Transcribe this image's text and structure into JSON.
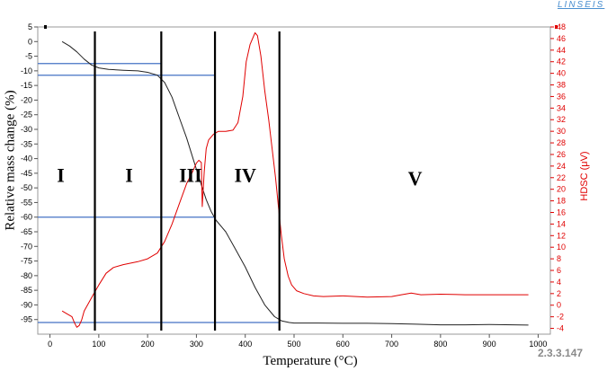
{
  "brand": {
    "logo_text": "LINSEIS"
  },
  "figure_id": "2.3.3.147",
  "chart_data": {
    "type": "line",
    "xlabel": "Temperature (°C)",
    "ylabel_left": "Relative mass change (%)",
    "ylabel_right": "HDSC (μV)",
    "xlim": [
      -25,
      1025
    ],
    "xticks": [
      0,
      100,
      200,
      300,
      400,
      500,
      600,
      700,
      800,
      900,
      1000
    ],
    "ylim_left": [
      -100,
      5
    ],
    "yticks_left": [
      5,
      0,
      -5,
      -10,
      -15,
      -20,
      -25,
      -30,
      -35,
      -40,
      -45,
      -50,
      -55,
      -60,
      -65,
      -70,
      -75,
      -80,
      -85,
      -90,
      -95
    ],
    "ylim_right": [
      -5,
      48
    ],
    "yticks_right": [
      48,
      46,
      44,
      42,
      40,
      38,
      36,
      34,
      32,
      30,
      28,
      26,
      24,
      22,
      20,
      18,
      16,
      14,
      12,
      10,
      8,
      6,
      4,
      2,
      0,
      -2,
      -4
    ],
    "grid": false,
    "colors": {
      "mass": "#222222",
      "hdsc": "#e00000",
      "guides": "#4472c4",
      "stage_lines": "#000000"
    },
    "series": [
      {
        "axis": "left",
        "x": [
          25,
          40,
          55,
          70,
          85,
          100,
          120,
          150,
          180,
          200,
          220,
          235,
          250,
          265,
          280,
          295,
          310,
          320,
          330,
          340,
          360,
          380,
          400,
          420,
          440,
          460,
          475,
          490,
          500,
          550,
          600,
          650,
          700,
          750,
          800,
          850,
          900,
          950,
          980
        ],
        "values": [
          0,
          -1.5,
          -3.5,
          -6,
          -8,
          -9,
          -9.5,
          -9.8,
          -10,
          -10.5,
          -11.5,
          -14,
          -19,
          -26,
          -33,
          -41,
          -49,
          -54,
          -58,
          -61,
          -65,
          -71,
          -77,
          -84,
          -90,
          -94,
          -95.5,
          -96,
          -96.2,
          -96.2,
          -96.3,
          -96.3,
          -96.4,
          -96.6,
          -96.8,
          -96.8,
          -96.7,
          -96.8,
          -96.9
        ]
      },
      {
        "axis": "right",
        "x": [
          25,
          35,
          45,
          50,
          55,
          60,
          65,
          70,
          80,
          90,
          100,
          115,
          130,
          150,
          180,
          200,
          220,
          235,
          250,
          265,
          280,
          292,
          300,
          305,
          310,
          312,
          316,
          320,
          325,
          335,
          345,
          360,
          375,
          385,
          395,
          402,
          410,
          420,
          425,
          432,
          440,
          448,
          455,
          462,
          468,
          474,
          480,
          488,
          495,
          505,
          520,
          540,
          560,
          600,
          650,
          700,
          720,
          740,
          760,
          800,
          850,
          900,
          950,
          980
        ],
        "values": [
          -1,
          -1.5,
          -2,
          -3,
          -3.8,
          -3.5,
          -2.5,
          -1,
          0.5,
          2,
          3.5,
          5.5,
          6.5,
          7,
          7.5,
          8,
          9,
          11,
          14,
          17.5,
          21,
          23,
          24.5,
          25,
          24.6,
          17,
          23,
          27,
          28.5,
          29.5,
          30,
          30,
          30.2,
          31.5,
          36,
          42,
          45,
          47,
          46.5,
          43,
          37,
          32,
          27,
          22,
          17,
          12,
          8,
          5,
          3.5,
          2.5,
          2,
          1.6,
          1.5,
          1.6,
          1.4,
          1.5,
          1.8,
          2.1,
          1.8,
          1.9,
          1.8,
          1.8,
          1.8,
          1.8
        ]
      }
    ],
    "stage_boundaries_x": [
      92,
      228,
      338,
      470
    ],
    "reference_levels_left": [
      {
        "y": -7.5,
        "x_range": [
          -25,
          228
        ]
      },
      {
        "y": -11.5,
        "x_range": [
          -25,
          338
        ]
      },
      {
        "y": -60,
        "x_range": [
          -25,
          338
        ]
      },
      {
        "y": -96,
        "x_range": [
          -25,
          470
        ]
      }
    ],
    "stage_labels": [
      {
        "text": "I",
        "x": 22,
        "y": -48
      },
      {
        "text": "I",
        "x": 162,
        "y": -48
      },
      {
        "text": "III",
        "x": 288,
        "y": -48
      },
      {
        "text": "IV",
        "x": 400,
        "y": -48
      },
      {
        "text": "V",
        "x": 748,
        "y": -49
      }
    ]
  }
}
